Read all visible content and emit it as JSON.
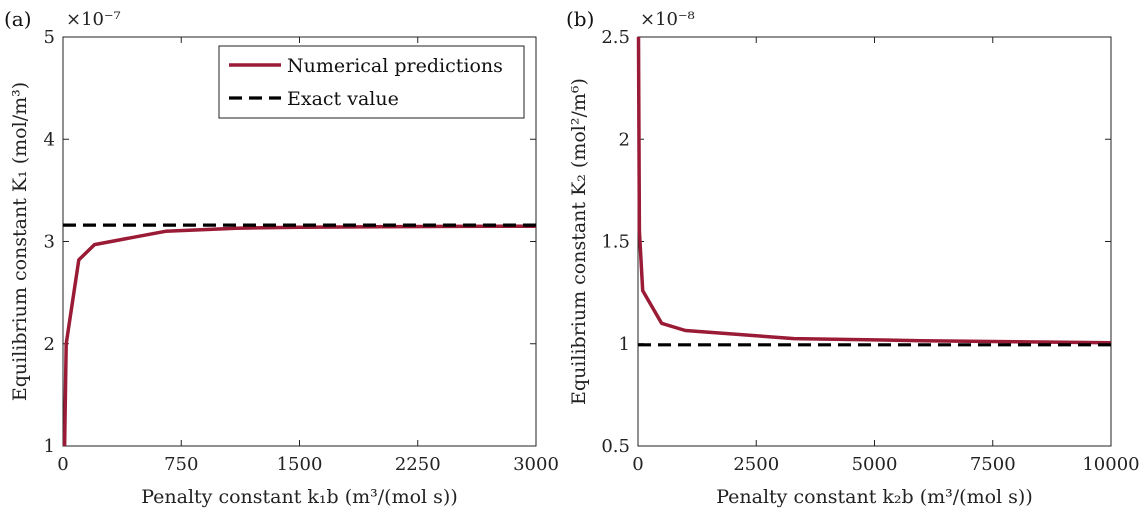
{
  "colors": {
    "numerical": "#9a1b35",
    "exact": "#000000",
    "axis": "#222222"
  },
  "chart_data": [
    {
      "type": "line",
      "panel_label": "(a)",
      "scale_exponent": "×10⁻⁷",
      "xlabel": "Penalty constant k₁b (m³/(mol s))",
      "ylabel": "Equilibrium constant K₁ (mol/m³)",
      "xlim": [
        0,
        3000
      ],
      "ylim": [
        1,
        5
      ],
      "xticks": [
        0,
        750,
        1500,
        2250,
        3000
      ],
      "xtick_labels": [
        "0",
        "750",
        "1500",
        "2250",
        "3000"
      ],
      "yticks": [
        1,
        2,
        3,
        4,
        5
      ],
      "ytick_labels": [
        "1",
        "2",
        "3",
        "4",
        "5"
      ],
      "grid": false,
      "legend": {
        "placement": "top-right",
        "entries": [
          "Numerical predictions",
          "Exact value"
        ]
      },
      "series": [
        {
          "name": "Numerical predictions",
          "style": "solid",
          "x": [
            10,
            20,
            100,
            200,
            650,
            1100,
            1500,
            2000,
            2500,
            3000
          ],
          "y": [
            1.0,
            2.0,
            2.82,
            2.97,
            3.1,
            3.13,
            3.14,
            3.145,
            3.148,
            3.15
          ]
        },
        {
          "name": "Exact value",
          "style": "dashed",
          "x": [
            0,
            3000
          ],
          "y": [
            3.16,
            3.16
          ]
        }
      ]
    },
    {
      "type": "line",
      "panel_label": "(b)",
      "scale_exponent": "×10⁻⁸",
      "xlabel": "Penalty constant k₂b (m³/(mol s))",
      "ylabel": "Equilibrium constant K₂ (mol²/m⁶)",
      "xlim": [
        0,
        10000
      ],
      "ylim": [
        0.5,
        2.5
      ],
      "xticks": [
        0,
        2500,
        5000,
        7500,
        10000
      ],
      "xtick_labels": [
        "0",
        "2500",
        "5000",
        "7500",
        "10000"
      ],
      "yticks": [
        0.5,
        1,
        1.5,
        2,
        2.5
      ],
      "ytick_labels": [
        "0.5",
        "1",
        "1.5",
        "2",
        "2.5"
      ],
      "grid": false,
      "series": [
        {
          "name": "Numerical predictions",
          "style": "solid",
          "x": [
            10,
            30,
            100,
            500,
            1000,
            3300,
            6000,
            8000,
            10000
          ],
          "y": [
            2.5,
            1.55,
            1.26,
            1.1,
            1.065,
            1.025,
            1.015,
            1.01,
            1.005
          ]
        },
        {
          "name": "Exact value",
          "style": "dashed",
          "x": [
            0,
            10000
          ],
          "y": [
            0.995,
            0.995
          ]
        }
      ]
    }
  ]
}
